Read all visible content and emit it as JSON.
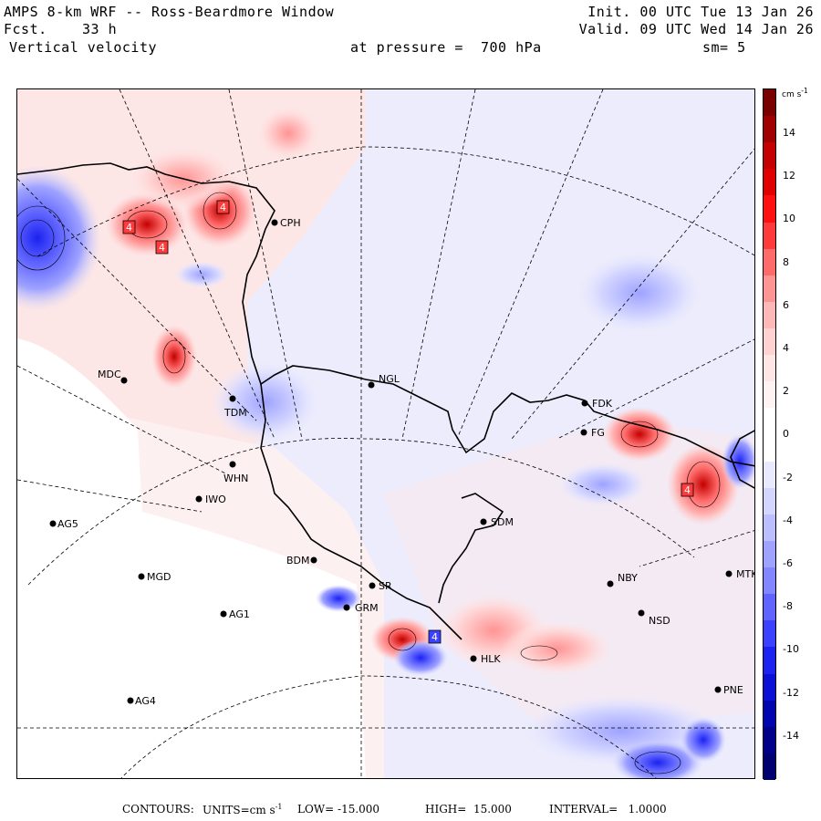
{
  "header": {
    "line1_left": "AMPS 8-km WRF -- Ross-Beardmore Window",
    "line1_right": "Init. 00 UTC Tue 13 Jan 26",
    "line2_left_label": "Fcst.",
    "line2_left_value": "33 h",
    "line2_right": "Valid. 09 UTC Wed 14 Jan 26",
    "line3_left": "Vertical velocity",
    "line3_mid": "at pressure =  700 hPa",
    "line3_right": "sm= 5"
  },
  "colorbar": {
    "unit": "cm s",
    "unit_exp": "-1",
    "ticks": [
      "14",
      "12",
      "10",
      "8",
      "6",
      "4",
      "2",
      "0",
      "-2",
      "-4",
      "-6",
      "-8",
      "-10",
      "-12",
      "-14"
    ],
    "colors": [
      "#7a0000",
      "#a00000",
      "#c40000",
      "#e00000",
      "#ff1010",
      "#ff3a3a",
      "#ff6a6a",
      "#ff9494",
      "#ffb8b8",
      "#ffd2d2",
      "#ffe6e6",
      "#fff2f2",
      "#ffffff",
      "#ffffff",
      "#eaeaff",
      "#d4d6ff",
      "#bcbfff",
      "#9fa3ff",
      "#8287ff",
      "#5f64ff",
      "#3c41ff",
      "#1c22f0",
      "#0b10d4",
      "#0005b0",
      "#00008a",
      "#000070"
    ]
  },
  "stations": [
    {
      "name": "CPH"
    },
    {
      "name": "MDC"
    },
    {
      "name": "TDM"
    },
    {
      "name": "NGL"
    },
    {
      "name": "FDK"
    },
    {
      "name": "FG"
    },
    {
      "name": "WHN"
    },
    {
      "name": "IWO"
    },
    {
      "name": "AG5"
    },
    {
      "name": "SDM"
    },
    {
      "name": "BDM"
    },
    {
      "name": "MGD"
    },
    {
      "name": "SR"
    },
    {
      "name": "GRM"
    },
    {
      "name": "AG1"
    },
    {
      "name": "NBY"
    },
    {
      "name": "MTK"
    },
    {
      "name": "NSD"
    },
    {
      "name": "HLK"
    },
    {
      "name": "PNE"
    },
    {
      "name": "AG4"
    }
  ],
  "boxes": [
    "4",
    "4",
    "4",
    "4",
    "4"
  ],
  "footer": {
    "contours": "CONTOURS:",
    "units_label": "UNITS=cm s",
    "units_exp": "-1",
    "low": "LOW= -15.000",
    "high": "HIGH=  15.000",
    "interval": "INTERVAL=   1.0000"
  }
}
